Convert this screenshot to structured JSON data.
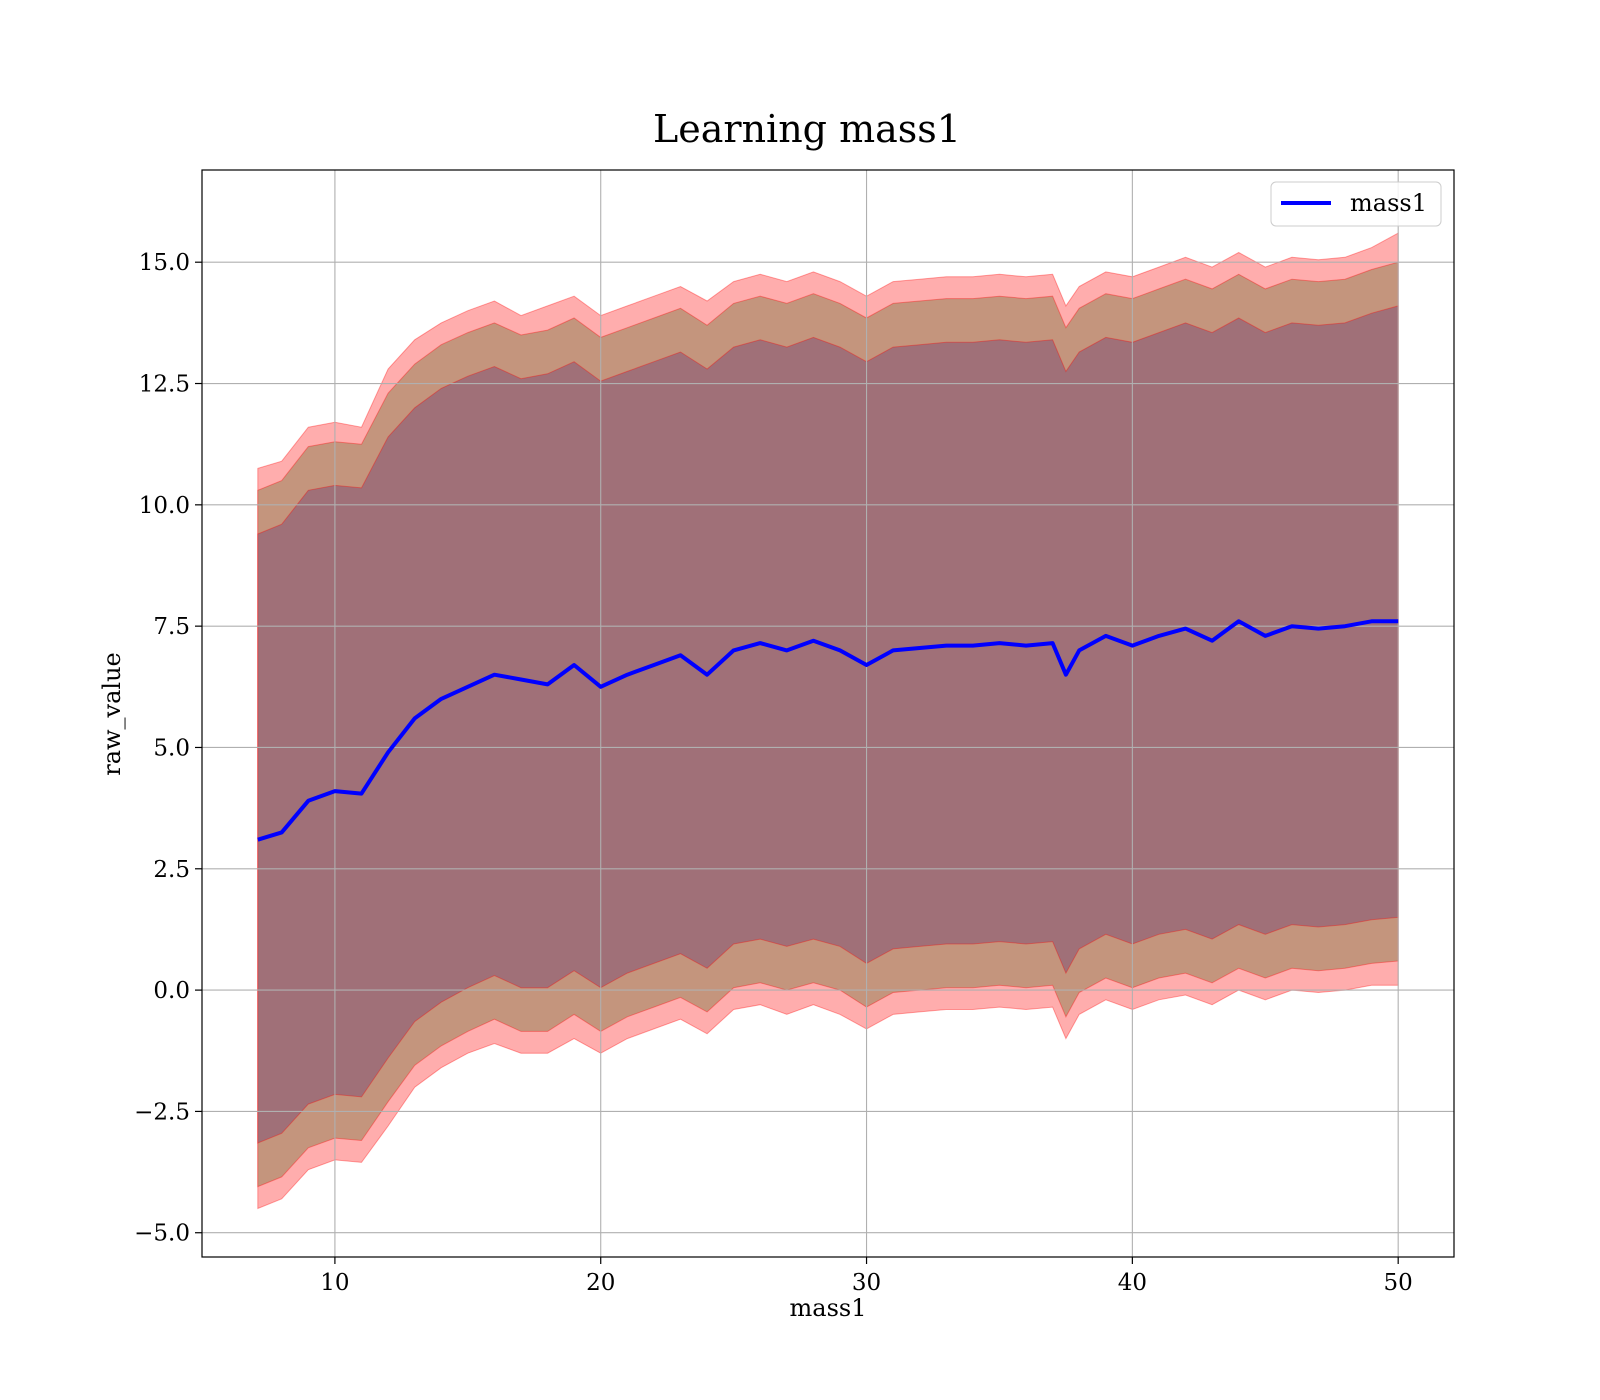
{
  "chart_data": {
    "type": "line",
    "title": "Learning mass1",
    "xlabel": "mass1",
    "ylabel": "raw_value",
    "xlim": [
      5,
      52.1
    ],
    "ylim": [
      -5.5,
      16.9
    ],
    "xticks": [
      10,
      20,
      30,
      40,
      50
    ],
    "xtick_labels": [
      "10",
      "20",
      "30",
      "40",
      "50"
    ],
    "yticks": [
      -5.0,
      -2.5,
      0.0,
      2.5,
      5.0,
      7.5,
      10.0,
      12.5,
      15.0
    ],
    "ytick_labels": [
      "−5.0",
      "−2.5",
      "0.0",
      "2.5",
      "5.0",
      "7.5",
      "10.0",
      "12.5",
      "15.0"
    ],
    "grid": true,
    "legend": {
      "position": "top-right",
      "entries": [
        "mass1"
      ]
    },
    "colors": {
      "line": "#0000ff",
      "band": "#ff0000",
      "band_outer": "#ffadad",
      "band_middle": "#c4957d",
      "band_inner": "#a07078",
      "grid": "#b0b0b0"
    },
    "x": [
      7.1,
      8,
      9,
      10,
      11,
      12,
      13,
      14,
      15,
      16,
      17,
      18,
      19,
      20,
      21,
      22,
      23,
      24,
      25,
      26,
      27,
      28,
      29,
      30,
      31,
      32,
      33,
      34,
      35,
      36,
      37,
      37.5,
      38,
      39,
      40,
      41,
      42,
      43,
      44,
      45,
      46,
      47,
      48,
      49,
      50
    ],
    "series": [
      {
        "name": "mass1",
        "values": [
          3.1,
          3.25,
          3.9,
          4.1,
          4.05,
          4.9,
          5.6,
          6.0,
          6.25,
          6.5,
          6.4,
          6.3,
          6.7,
          6.25,
          6.5,
          6.7,
          6.9,
          6.5,
          7.0,
          7.15,
          7.0,
          7.2,
          7.0,
          6.7,
          7.0,
          7.05,
          7.1,
          7.1,
          7.15,
          7.1,
          7.15,
          6.5,
          7.0,
          7.3,
          7.1,
          7.3,
          7.45,
          7.2,
          7.6,
          7.3,
          7.5,
          7.45,
          7.5,
          7.6,
          7.6
        ]
      }
    ],
    "bands": [
      {
        "level": "outer",
        "upper": [
          10.75,
          10.9,
          11.6,
          11.7,
          11.6,
          12.8,
          13.4,
          13.75,
          14.0,
          14.2,
          13.9,
          14.1,
          14.3,
          13.9,
          14.1,
          14.3,
          14.5,
          14.2,
          14.6,
          14.75,
          14.6,
          14.8,
          14.6,
          14.3,
          14.6,
          14.65,
          14.7,
          14.7,
          14.75,
          14.7,
          14.75,
          14.1,
          14.5,
          14.8,
          14.7,
          14.9,
          15.1,
          14.9,
          15.2,
          14.9,
          15.1,
          15.05,
          15.1,
          15.3,
          15.6
        ],
        "lower": [
          -4.5,
          -4.3,
          -3.7,
          -3.5,
          -3.55,
          -2.8,
          -2.0,
          -1.6,
          -1.3,
          -1.1,
          -1.3,
          -1.3,
          -1.0,
          -1.3,
          -1.0,
          -0.8,
          -0.6,
          -0.9,
          -0.4,
          -0.3,
          -0.5,
          -0.3,
          -0.5,
          -0.8,
          -0.5,
          -0.45,
          -0.4,
          -0.4,
          -0.35,
          -0.4,
          -0.35,
          -1.0,
          -0.5,
          -0.2,
          -0.4,
          -0.2,
          -0.1,
          -0.3,
          0.0,
          -0.2,
          0.0,
          -0.05,
          0.0,
          0.1,
          0.1
        ]
      },
      {
        "level": "middle",
        "upper": [
          10.3,
          10.5,
          11.2,
          11.3,
          11.25,
          12.3,
          12.9,
          13.3,
          13.55,
          13.75,
          13.5,
          13.6,
          13.85,
          13.45,
          13.65,
          13.85,
          14.05,
          13.7,
          14.15,
          14.3,
          14.15,
          14.35,
          14.15,
          13.85,
          14.15,
          14.2,
          14.25,
          14.25,
          14.3,
          14.25,
          14.3,
          13.65,
          14.05,
          14.35,
          14.25,
          14.45,
          14.65,
          14.45,
          14.75,
          14.45,
          14.65,
          14.6,
          14.65,
          14.85,
          15.0
        ],
        "lower": [
          -4.05,
          -3.85,
          -3.25,
          -3.05,
          -3.1,
          -2.3,
          -1.55,
          -1.15,
          -0.85,
          -0.6,
          -0.85,
          -0.85,
          -0.5,
          -0.85,
          -0.55,
          -0.35,
          -0.15,
          -0.45,
          0.05,
          0.15,
          0.0,
          0.15,
          0.0,
          -0.35,
          -0.05,
          0.0,
          0.05,
          0.05,
          0.1,
          0.05,
          0.1,
          -0.55,
          -0.05,
          0.25,
          0.05,
          0.25,
          0.35,
          0.15,
          0.45,
          0.25,
          0.45,
          0.4,
          0.45,
          0.55,
          0.6
        ]
      },
      {
        "level": "inner",
        "upper": [
          9.4,
          9.6,
          10.3,
          10.4,
          10.35,
          11.4,
          12.0,
          12.4,
          12.65,
          12.85,
          12.6,
          12.7,
          12.95,
          12.55,
          12.75,
          12.95,
          13.15,
          12.8,
          13.25,
          13.4,
          13.25,
          13.45,
          13.25,
          12.95,
          13.25,
          13.3,
          13.35,
          13.35,
          13.4,
          13.35,
          13.4,
          12.75,
          13.15,
          13.45,
          13.35,
          13.55,
          13.75,
          13.55,
          13.85,
          13.55,
          13.75,
          13.7,
          13.75,
          13.95,
          14.1
        ],
        "lower": [
          -3.15,
          -2.95,
          -2.35,
          -2.15,
          -2.2,
          -1.4,
          -0.65,
          -0.25,
          0.05,
          0.3,
          0.05,
          0.05,
          0.4,
          0.05,
          0.35,
          0.55,
          0.75,
          0.45,
          0.95,
          1.05,
          0.9,
          1.05,
          0.9,
          0.55,
          0.85,
          0.9,
          0.95,
          0.95,
          1.0,
          0.95,
          1.0,
          0.35,
          0.85,
          1.15,
          0.95,
          1.15,
          1.25,
          1.05,
          1.35,
          1.15,
          1.35,
          1.3,
          1.35,
          1.45,
          1.5
        ]
      }
    ]
  }
}
